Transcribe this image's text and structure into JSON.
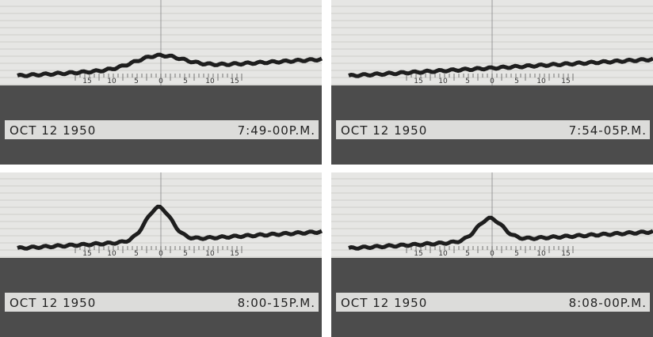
{
  "panels": [
    {
      "date": "OCT 12 1950",
      "time": "7:49-00P.M.",
      "scale": [
        "15",
        "10",
        "5",
        "0",
        "5",
        "10",
        "15"
      ]
    },
    {
      "date": "OCT 12 1950",
      "time": "7:54-05P.M.",
      "scale": [
        "15",
        "10",
        "5",
        "0",
        "5",
        "10",
        "15"
      ]
    },
    {
      "date": "OCT 12 1950",
      "time": "8:00-15P.M.",
      "scale": [
        "15",
        "10",
        "5",
        "0",
        "5",
        "10",
        "15"
      ]
    },
    {
      "date": "OCT 12 1950",
      "time": "8:08-00P.M.",
      "scale": [
        "15",
        "10",
        "5",
        "0",
        "5",
        "10",
        "15"
      ]
    }
  ]
}
